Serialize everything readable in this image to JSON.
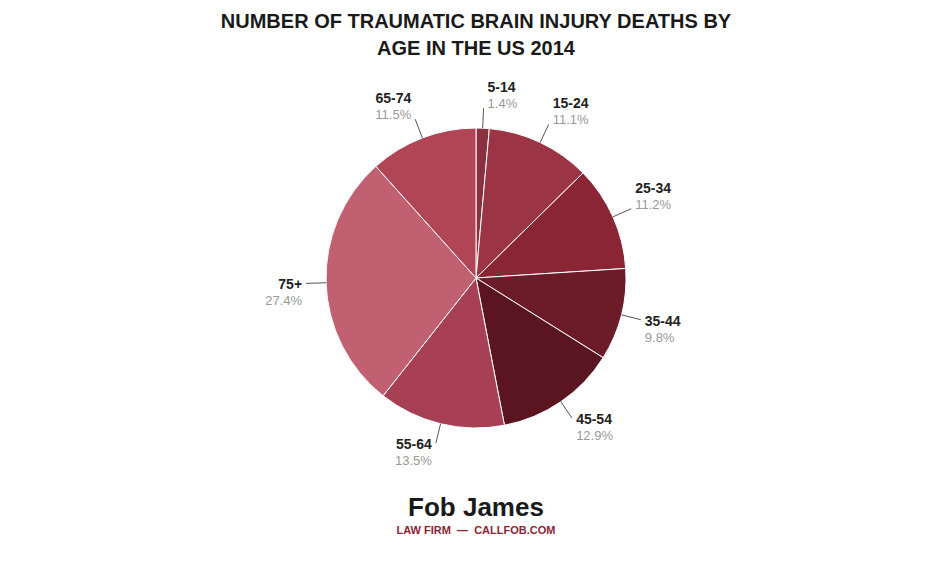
{
  "chart_data": {
    "type": "pie",
    "title": "NUMBER OF TRAUMATIC BRAIN INJURY DEATHS BY\nAGE IN THE US 2014",
    "categories": [
      "5-14",
      "15-24",
      "25-34",
      "35-44",
      "45-54",
      "55-64",
      "75+",
      "65-74"
    ],
    "values": [
      1.4,
      11.1,
      11.2,
      9.8,
      12.9,
      13.5,
      27.4,
      11.5
    ],
    "value_labels": [
      "1.4%",
      "11.1%",
      "11.2%",
      "9.8%",
      "12.9%",
      "13.5%",
      "27.4%",
      "11.5%"
    ],
    "colors": [
      "#8b3040",
      "#9b3545",
      "#8a2535",
      "#6b1c28",
      "#5a1520",
      "#a84055",
      "#c06070",
      "#b04555"
    ],
    "data_labels": true,
    "annotations": [
      "Fob James",
      "LAW FIRM  —  CALLFOB.COM"
    ]
  }
}
